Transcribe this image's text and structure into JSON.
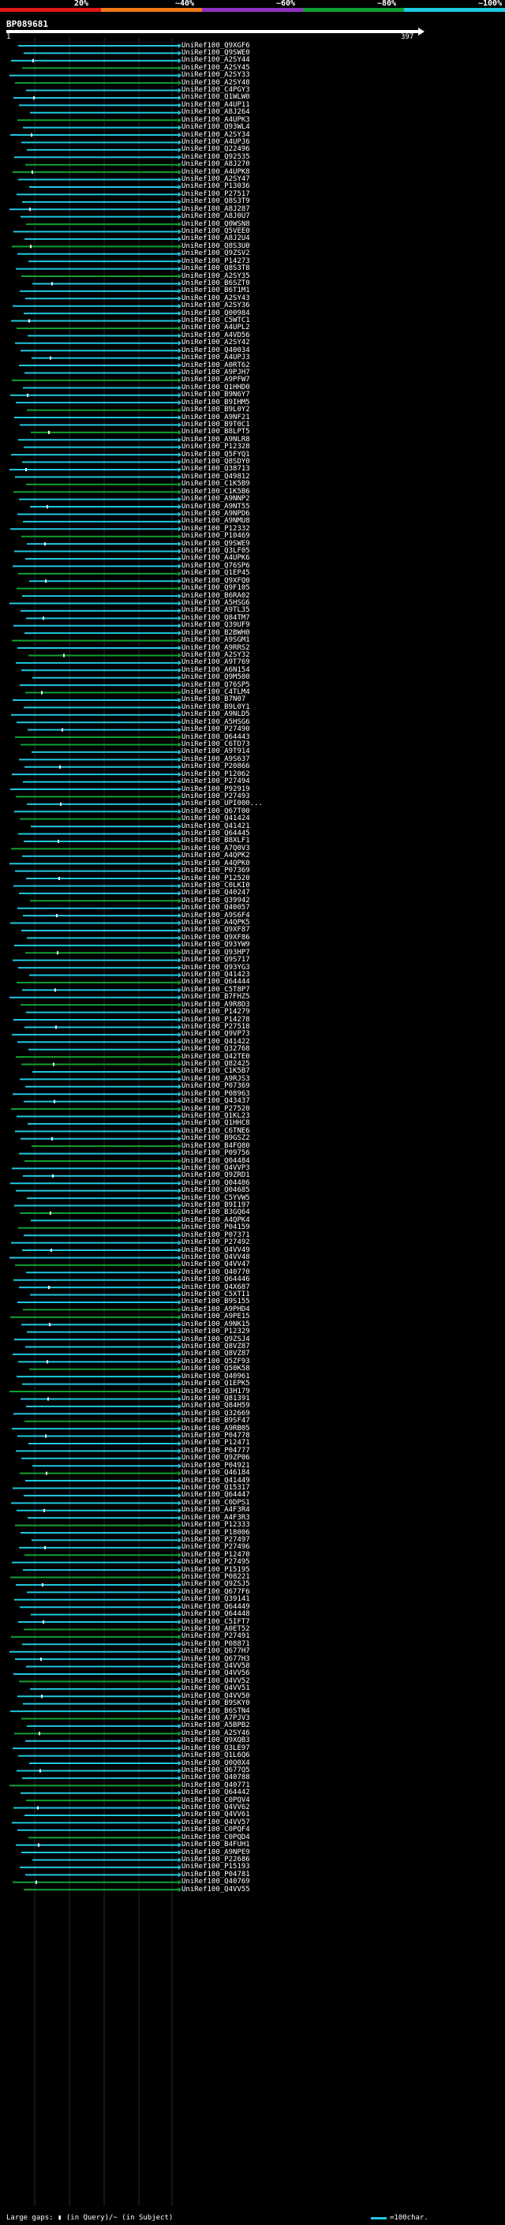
{
  "legend": {
    "ticks": [
      "20%",
      "~40%",
      "~60%",
      "~80%",
      "~100%"
    ],
    "colors": [
      "#e01818",
      "#f07818",
      "#9030c0",
      "#10a030",
      "#1ec8e0"
    ]
  },
  "query": {
    "title": "BP089681",
    "start": "1",
    "end": "397"
  },
  "hits": [
    "UniRef100_Q9XGF6",
    "UniRef100_Q9SWE0",
    "UniRef100_A2SY44",
    "UniRef100_A2SY45",
    "UniRef100_A2SY33",
    "UniRef100_A2SY48",
    "UniRef100_C4PGY3",
    "UniRef100_Q1WLW0",
    "UniRef100_A4UP11",
    "UniRef100_A8J264",
    "UniRef100_A4UPK3",
    "UniRef100_Q93WL4",
    "UniRef100_A2SY34",
    "UniRef100_A4UPJ6",
    "UniRef100_Q22496",
    "UniRef100_Q92535",
    "UniRef100_A8J270",
    "UniRef100_A4UPK8",
    "UniRef100_A2SY47",
    "UniRef100_P13036",
    "UniRef100_P27517",
    "UniRef100_Q8S3T9",
    "UniRef100_A8J287",
    "UniRef100_A8J0U7",
    "UniRef100_Q0WSN8",
    "UniRef100_Q5VEE0",
    "UniRef100_A8J2U4",
    "UniRef100_Q8S3U0",
    "UniRef100_Q9ZSV2",
    "UniRef100_P14273",
    "UniRef100_Q8S3T8",
    "UniRef100_A2SY35",
    "UniRef100_B6SZT0",
    "UniRef100_B6T1M1",
    "UniRef100_A2SY43",
    "UniRef100_A2SY36",
    "UniRef100_Q00984",
    "UniRef100_C5WTC1",
    "UniRef100_A4UPL2",
    "UniRef100_A4VD56",
    "UniRef100_A2SY42",
    "UniRef100_Q40034",
    "UniRef100_A4UPJ3",
    "UniRef100_A0RT62",
    "UniRef100_A9PJH7",
    "UniRef100_A9PFW7",
    "UniRef100_Q1HHD0",
    "UniRef100_B9N6Y7",
    "UniRef100_B9IHM5",
    "UniRef100_B9L0Y2",
    "UniRef100_A9NF21",
    "UniRef100_B9T0C1",
    "UniRef100_B8LPT5",
    "UniRef100_A9NLR8",
    "UniRef100_P12328",
    "UniRef100_Q5FYQ1",
    "UniRef100_Q8SDY0",
    "UniRef100_Q38713",
    "UniRef100_Q49812",
    "UniRef100_C1K5B9",
    "UniRef100_C1K5B6",
    "UniRef100_A9NNP2",
    "UniRef100_A9NT55",
    "UniRef100_A9NPD6",
    "UniRef100_A9NMU8",
    "UniRef100_P12332",
    "UniRef100_P10469",
    "UniRef100_Q9SWE9",
    "UniRef100_Q3LF05",
    "UniRef100_A4UPK6",
    "UniRef100_Q76SP6",
    "UniRef100_Q1EP45",
    "UniRef100_Q9XFQ0",
    "UniRef100_Q9F105",
    "UniRef100_B6RA02",
    "UniRef100_A5HSG6",
    "UniRef100_A9TL35",
    "UniRef100_Q84TM7",
    "UniRef100_Q39UF9",
    "UniRef100_B2BWH0",
    "UniRef100_A9SGM1",
    "UniRef100_A9RRS2",
    "UniRef100_A2SY32",
    "UniRef100_A9T769",
    "UniRef100_A6N154",
    "UniRef100_Q9M500",
    "UniRef100_Q76SP5",
    "UniRef100_C4TLM4",
    "UniRef100_B7N07",
    "UniRef100_B9L0Y1",
    "UniRef100_A9NLD5",
    "UniRef100_A5HSG6",
    "UniRef100_P27490",
    "UniRef100_Q64443",
    "UniRef100_C6TD73",
    "UniRef100_A9T914",
    "UniRef100_A9S637",
    "UniRef100_P20866",
    "UniRef100_P12062",
    "UniRef100_P27494",
    "UniRef100_P92919",
    "UniRef100_P27493",
    "UniRef100_UPI000...",
    "UniRef100_Q67T00",
    "UniRef100_Q41424",
    "UniRef100_Q41421",
    "UniRef100_Q64445",
    "UniRef100_B8XLF1",
    "UniRef100_A7Q0V3",
    "UniRef100_A4QPK2",
    "UniRef100_A4QPK0",
    "UniRef100_P07369",
    "UniRef100_P12520",
    "UniRef100_C0LKI0",
    "UniRef100_Q40247",
    "UniRef100_Q39942",
    "UniRef100_Q40057",
    "UniRef100_A9S6F4",
    "UniRef100_A4QPK5",
    "UniRef100_Q9XF87",
    "UniRef100_Q9XF86",
    "UniRef100_Q93YW9",
    "UniRef100_Q93HP7",
    "UniRef100_Q9S717",
    "UniRef100_Q93YG3",
    "UniRef100_Q41423",
    "UniRef100_Q64444",
    "UniRef100_C5T8P7",
    "UniRef100_B7FHZ5",
    "UniRef100_A9R8D3",
    "UniRef100_P14279",
    "UniRef100_P14278",
    "UniRef100_P27518",
    "UniRef100_Q9VP73",
    "UniRef100_Q41422",
    "UniRef100_Q32768",
    "UniRef100_Q42TE0",
    "UniRef100_Q82425",
    "UniRef100_C1K5B7",
    "UniRef100_A9RJS3",
    "UniRef100_P07369",
    "UniRef100_P08963",
    "UniRef100_Q43437",
    "UniRef100_P27520",
    "UniRef100_Q1KL23",
    "UniRef100_Q1HHC8",
    "UniRef100_C6TNE6",
    "UniRef100_B9GSZ2",
    "UniRef100_B4FQ80",
    "UniRef100_P09756",
    "UniRef100_Q04484",
    "UniRef100_Q4VVP3",
    "UniRef100_Q9ZRD1",
    "UniRef100_Q04486",
    "UniRef100_Q04685",
    "UniRef100_C5YVW5",
    "UniRef100_B9I197",
    "UniRef100_B3GQ64",
    "UniRef100_A4QPK4",
    "UniRef100_P04159",
    "UniRef100_P07371",
    "UniRef100_P27492",
    "UniRef100_Q4VV49",
    "UniRef100_Q4VV48",
    "UniRef100_Q4VV47",
    "UniRef100_Q40770",
    "UniRef100_Q64446",
    "UniRef100_Q4X687",
    "UniRef100_C5XTI1",
    "UniRef100_B9S155",
    "UniRef100_A9PHD4",
    "UniRef100_A9PE15",
    "UniRef100_A9NK15",
    "UniRef100_P12329",
    "UniRef100_Q9ZSJ4",
    "UniRef100_Q8VZ87",
    "UniRef100_Q8VZ87",
    "UniRef100_Q5ZF93",
    "UniRef100_Q50K58",
    "UniRef100_Q40961",
    "UniRef100_Q1EPK5",
    "UniRef100_Q3H179",
    "UniRef100_Q81391",
    "UniRef100_Q84H59",
    "UniRef100_Q32669",
    "UniRef100_B9SF47",
    "UniRef100_A9RB05",
    "UniRef100_P04778",
    "UniRef100_P12471",
    "UniRef100_P04777",
    "UniRef100_Q9ZP06",
    "UniRef100_P04921",
    "UniRef100_Q46184",
    "UniRef100_Q41449",
    "UniRef100_Q15317",
    "UniRef100_Q64447",
    "UniRef100_C0DPS1",
    "UniRef100_A4F3R4",
    "UniRef100_A4F3R3",
    "UniRef100_P12333",
    "UniRef100_P18006",
    "UniRef100_P27497",
    "UniRef100_P27496",
    "UniRef100_P12470",
    "UniRef100_P27495",
    "UniRef100_P15195",
    "UniRef100_P08221",
    "UniRef100_Q9ZSJ5",
    "UniRef100_Q677F6",
    "UniRef100_Q39141",
    "UniRef100_Q64449",
    "UniRef100_Q64448",
    "UniRef100_C5IFT7",
    "UniRef100_A0ET52",
    "UniRef100_P27491",
    "UniRef100_P08871",
    "UniRef100_Q677H7",
    "UniRef100_Q677H3",
    "UniRef100_Q4VV58",
    "UniRef100_Q4VV56",
    "UniRef100_Q4VV52",
    "UniRef100_Q4VV51",
    "UniRef100_Q4VV50",
    "UniRef100_B9SKY0",
    "UniRef100_B6STN4",
    "UniRef100_A7PJV3",
    "UniRef100_A5BPB2",
    "UniRef100_A2SY46",
    "UniRef100_Q9XQB3",
    "UniRef100_Q3LE97",
    "UniRef100_Q1L6Q6",
    "UniRef100_Q0Q0X4",
    "UniRef100_Q677Q5",
    "UniRef100_Q40788",
    "UniRef100_Q40771",
    "UniRef100_Q64442",
    "UniRef100_C0PQV4",
    "UniRef100_Q4VV62",
    "UniRef100_Q4VV61",
    "UniRef100_Q4VV57",
    "UniRef100_C0PQF4",
    "UniRef100_C0PQD4",
    "UniRef100_B4FUH1",
    "UniRef100_A9NPE9",
    "UniRef100_P22686",
    "UniRef100_P15193",
    "UniRef100_P04781",
    "UniRef100_Q40769",
    "UniRef100_Q4VV55"
  ],
  "footer": {
    "left": "Large gaps: ▮ (in Query)/~ (in Subject)",
    "right": "=100char."
  }
}
